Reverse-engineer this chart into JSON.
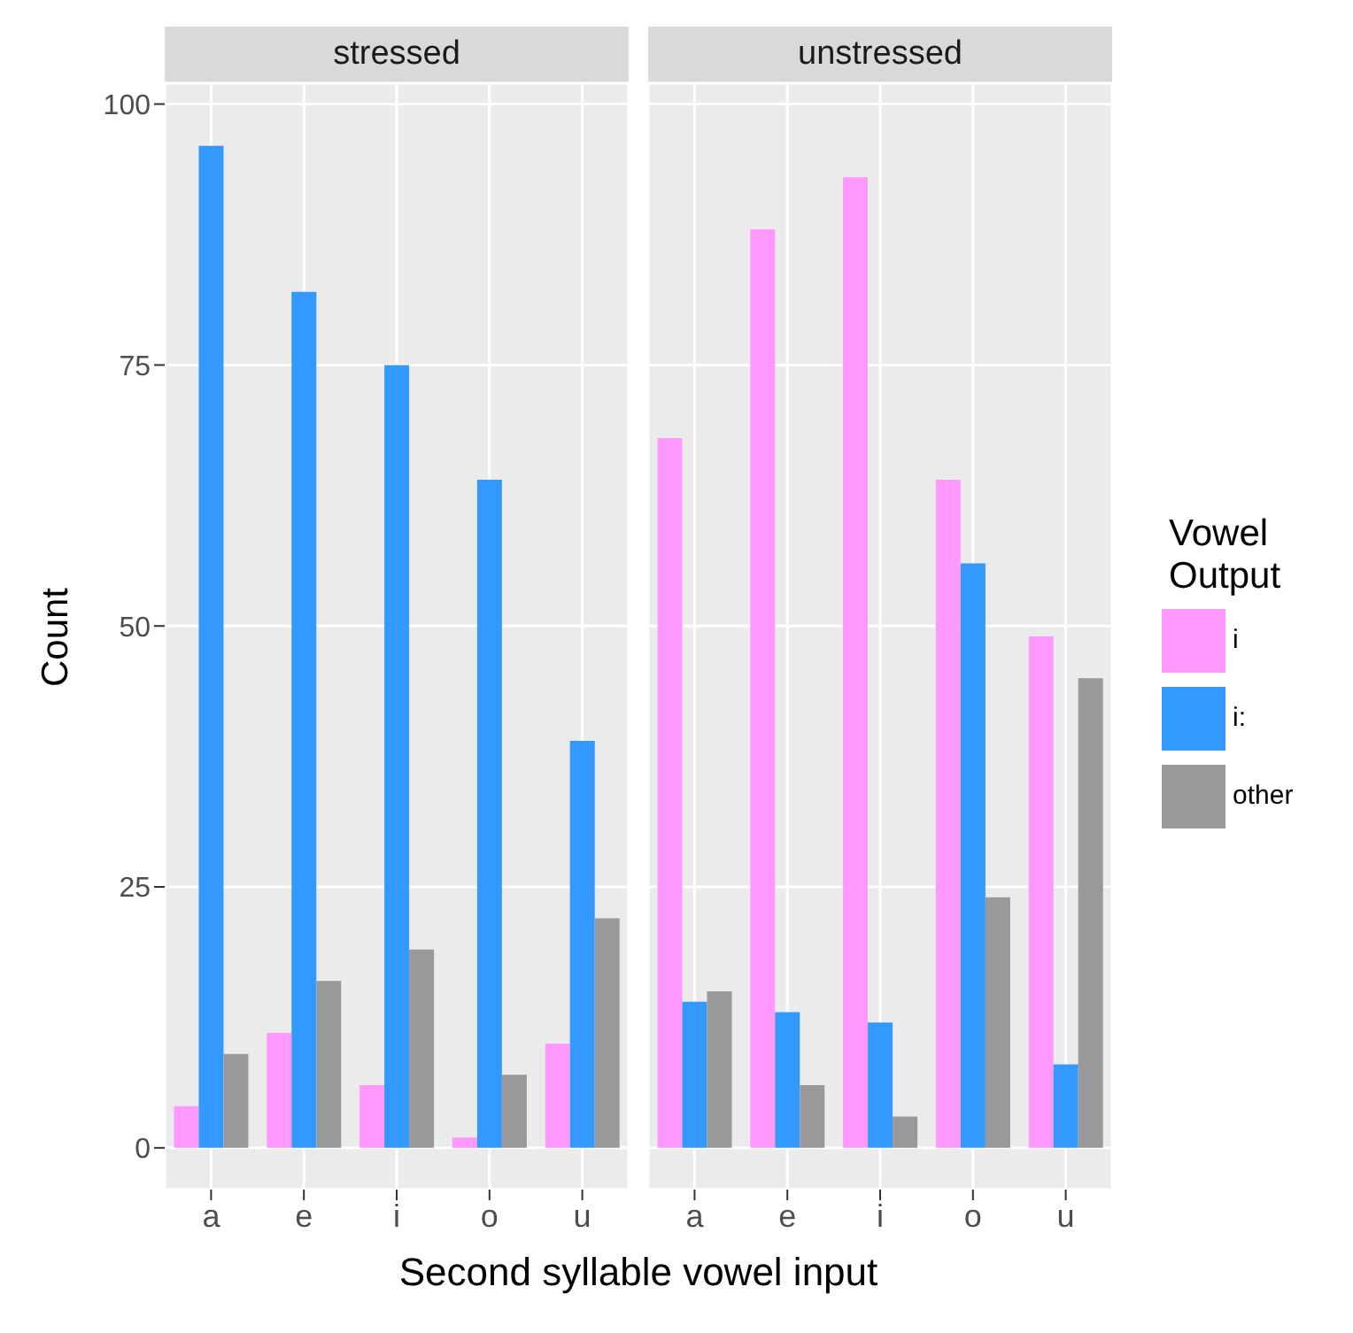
{
  "chart_data": [
    {
      "type": "bar",
      "title": "stressed",
      "xlabel": "Second syllable vowel input",
      "ylabel": "Count",
      "categories": [
        "a",
        "e",
        "i",
        "o",
        "u"
      ],
      "series": [
        {
          "color": "#ff99ff",
          "values": [
            4,
            11,
            6,
            1,
            10
          ]
        },
        {
          "color": "#3399ff",
          "values": [
            96,
            82,
            75,
            64,
            39
          ]
        },
        {
          "color": "#999999",
          "values": [
            9,
            16,
            19,
            7,
            22
          ]
        }
      ],
      "ylim": [
        -4,
        102
      ],
      "yticks": [
        0,
        25,
        50,
        75,
        100
      ],
      "grid": true
    },
    {
      "type": "bar",
      "title": "unstressed",
      "categories": [
        "a",
        "e",
        "i",
        "o",
        "u"
      ],
      "series": [
        {
          "name": "i",
          "color": "#ff99ff",
          "values": [
            68,
            88,
            93,
            64,
            49
          ]
        },
        {
          "name": "i:",
          "color": "#3399ff",
          "values": [
            14,
            13,
            12,
            56,
            8
          ]
        },
        {
          "name": "other",
          "color": "#999999",
          "values": [
            15,
            6,
            3,
            24,
            45
          ]
        }
      ],
      "ylim": [
        -4,
        102
      ],
      "yticks": [
        0,
        25,
        50,
        75,
        100
      ],
      "grid": true,
      "tick_labels": "x",
      "legend": "right",
      "legend_title": "Vowel Output"
    }
  ]
}
